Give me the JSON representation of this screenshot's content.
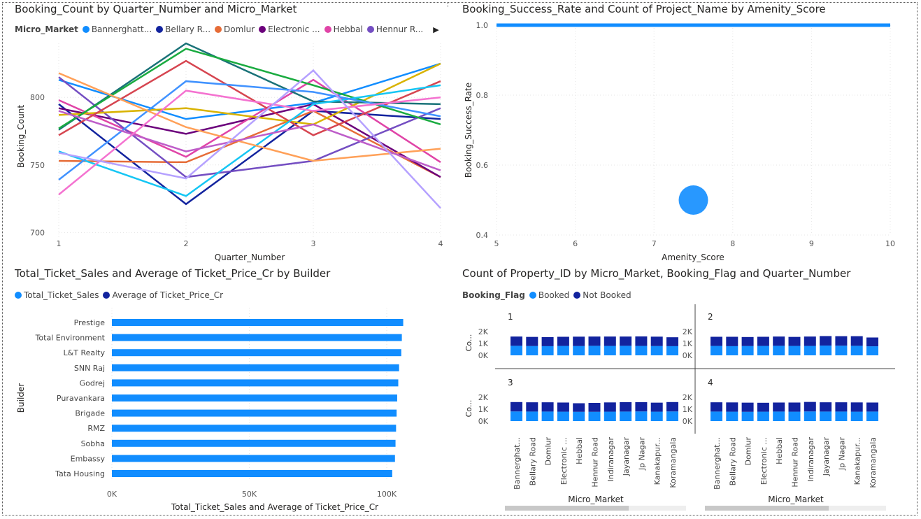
{
  "colors": {
    "booked": "#118DFF",
    "not_booked": "#12239E",
    "sales": "#118DFF",
    "avg_price": "#12239E",
    "series": [
      "#118DFF",
      "#12239E",
      "#E66C37",
      "#6B007B",
      "#E044A7",
      "#744EC2",
      "#D9B300",
      "#D64550",
      "#197278",
      "#1AAB40",
      "#15C6F4",
      "#4092FF",
      "#FFA058",
      "#BE5DC9",
      "#F472D0",
      "#B5A1FF"
    ]
  },
  "chart_data": [
    {
      "type": "line",
      "title": "Booking_Count by Quarter_Number and Micro_Market",
      "xlabel": "Quarter_Number",
      "ylabel": "Booking_Count",
      "legend_title": "Micro_Market",
      "legend": [
        "Bannerghatt...",
        "Bellary R...",
        "Domlur",
        "Electronic ...",
        "Hebbal",
        "Hennur R..."
      ],
      "legend_more_icon": "chevron-right-icon",
      "x": [
        1,
        2,
        3,
        4
      ],
      "x_ticks": [
        "1",
        "2",
        "3",
        "4"
      ],
      "y_ticks": [
        "700",
        "750",
        "800"
      ],
      "ylim": [
        695,
        840
      ],
      "grid": true,
      "series": [
        {
          "name": "Bannerghatt...",
          "values": [
            813,
            784,
            796,
            825
          ]
        },
        {
          "name": "Bellary R...",
          "values": [
            795,
            721,
            790,
            784
          ]
        },
        {
          "name": "Domlur",
          "values": [
            753,
            752,
            790,
            741
          ]
        },
        {
          "name": "Electronic ...",
          "values": [
            792,
            773,
            795,
            741
          ]
        },
        {
          "name": "Hebbal",
          "values": [
            798,
            756,
            813,
            752
          ]
        },
        {
          "name": "Hennur R...",
          "values": [
            815,
            741,
            753,
            792
          ]
        },
        {
          "values": [
            787,
            792,
            780,
            825
          ]
        },
        {
          "values": [
            772,
            827,
            772,
            812
          ]
        },
        {
          "values": [
            776,
            840,
            797,
            795
          ]
        },
        {
          "values": [
            777,
            836,
            809,
            780
          ]
        },
        {
          "values": [
            760,
            727,
            795,
            809
          ]
        },
        {
          "values": [
            739,
            812,
            804,
            786
          ]
        },
        {
          "values": [
            818,
            778,
            753,
            762
          ]
        },
        {
          "values": [
            790,
            760,
            780,
            746
          ]
        },
        {
          "values": [
            728,
            805,
            790,
            800
          ]
        },
        {
          "values": [
            759,
            740,
            820,
            718
          ]
        }
      ]
    },
    {
      "type": "scatter",
      "title": "Booking_Success_Rate and Count of Project_Name by Amenity_Score",
      "xlabel": "Amenity_Score",
      "ylabel": "Booking_Success_Rate",
      "x_ticks": [
        "5",
        "6",
        "7",
        "8",
        "9",
        "10"
      ],
      "y_ticks": [
        "0.4",
        "0.6",
        "0.8",
        "1.0"
      ],
      "xlim": [
        5,
        10
      ],
      "ylim": [
        0.4,
        1.0
      ],
      "grid": true,
      "line": {
        "from": [
          5,
          1.0
        ],
        "to": [
          10,
          1.0
        ]
      },
      "points": [
        {
          "x": 7.5,
          "y": 0.5
        }
      ]
    },
    {
      "type": "bar",
      "orientation": "horizontal",
      "title": "Total_Ticket_Sales and Average of Ticket_Price_Cr by Builder",
      "xlabel": "Total_Ticket_Sales and Average of Ticket_Price_Cr",
      "ylabel": "Builder",
      "legend": [
        "Total_Ticket_Sales",
        "Average of Ticket_Price_Cr"
      ],
      "categories": [
        "Prestige",
        "Total Environment",
        "L&T Realty",
        "SNN Raj",
        "Godrej",
        "Puravankara",
        "Brigade",
        "RMZ",
        "Sobha",
        "Embassy",
        "Tata Housing"
      ],
      "x_ticks": [
        "0K",
        "50K",
        "100K"
      ],
      "xlim": [
        0,
        110000
      ],
      "grid": true,
      "series": [
        {
          "name": "Total_Ticket_Sales",
          "values": [
            106000,
            105500,
            105300,
            104500,
            104200,
            103800,
            103600,
            103400,
            103200,
            103000,
            102000
          ]
        },
        {
          "name": "Average of Ticket_Price_Cr",
          "values": [
            5,
            5,
            5,
            5,
            5,
            5,
            5,
            5,
            5,
            5,
            5
          ]
        }
      ]
    },
    {
      "type": "bar",
      "orientation": "vertical-stacked-small-multiples",
      "title": "Count of Property_ID by Micro_Market, Booking_Flag and Quarter_Number",
      "legend_title": "Booking_Flag",
      "legend": [
        "Booked",
        "Not Booked"
      ],
      "xlabel": "Micro_Market",
      "ylabel": "Co...",
      "y_ticks": [
        "0K",
        "1K",
        "2K"
      ],
      "ylim": [
        0,
        2000
      ],
      "categories": [
        "Bannerghat...",
        "Bellary Road",
        "Domlur",
        "Electronic ...",
        "Hebbal",
        "Hennur Road",
        "Indiranagar",
        "Jayanagar",
        "Jp Nagar",
        "Kanakapur...",
        "Koramangala"
      ],
      "panels": [
        {
          "label": "1",
          "booked": [
            800,
            780,
            770,
            790,
            780,
            800,
            790,
            800,
            790,
            780,
            770
          ],
          "not_booked": [
            780,
            770,
            760,
            770,
            790,
            780,
            790,
            780,
            800,
            790,
            750
          ]
        },
        {
          "label": "2",
          "booked": [
            790,
            770,
            780,
            790,
            800,
            790,
            790,
            820,
            810,
            800,
            760
          ],
          "not_booked": [
            770,
            790,
            760,
            770,
            780,
            760,
            790,
            800,
            800,
            810,
            740
          ]
        },
        {
          "label": "3",
          "booked": [
            810,
            800,
            800,
            790,
            780,
            780,
            790,
            800,
            810,
            790,
            810
          ],
          "not_booked": [
            790,
            780,
            780,
            770,
            720,
            750,
            780,
            790,
            780,
            760,
            790
          ]
        },
        {
          "label": "4",
          "booked": [
            800,
            790,
            780,
            790,
            800,
            790,
            810,
            800,
            800,
            790,
            800
          ],
          "not_booked": [
            780,
            780,
            770,
            750,
            760,
            770,
            800,
            780,
            780,
            780,
            760
          ]
        }
      ]
    }
  ]
}
